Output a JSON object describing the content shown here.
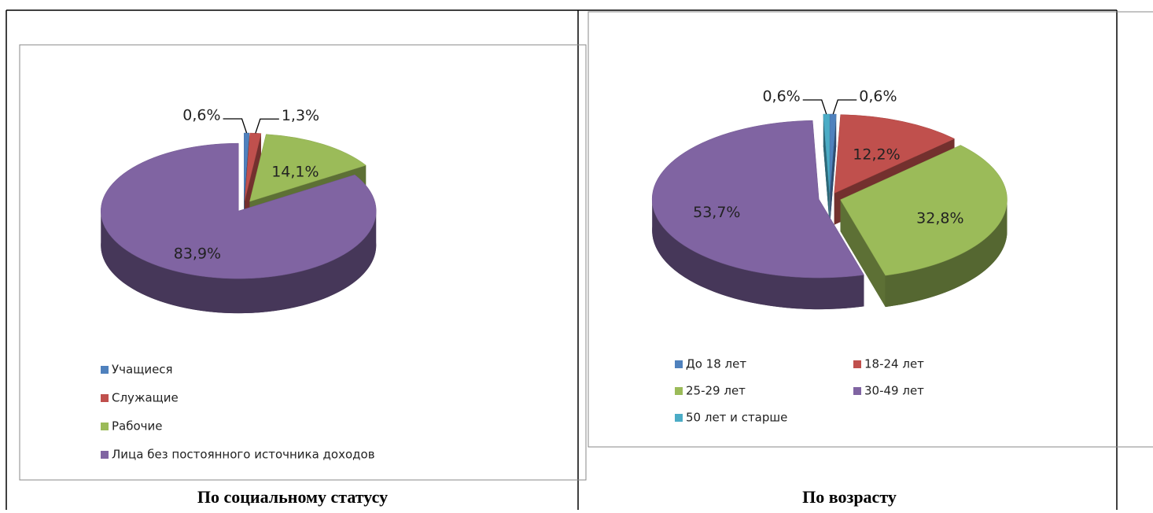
{
  "chart_data": [
    {
      "type": "pie",
      "title": "По социальному статусу",
      "categories": [
        "Учащиеся",
        "Служащие",
        "Рабочие",
        "Лица без постоянного источника доходов"
      ],
      "values": [
        0.6,
        1.3,
        14.1,
        83.9
      ],
      "value_labels": [
        "0,6%",
        "1,3%",
        "14,1%",
        "83,9%"
      ],
      "colors": [
        "#4f81bd",
        "#c0504d",
        "#9bbb59",
        "#8064a2"
      ],
      "legend": "bottom"
    },
    {
      "type": "pie",
      "title": "По возрасту",
      "categories": [
        "До 18 лет",
        "18-24 лет",
        "25-29 лет",
        "30-49 лет",
        "50 лет и старше"
      ],
      "values": [
        0.6,
        12.2,
        32.8,
        53.7,
        0.6
      ],
      "value_labels": [
        "0,6%",
        "12,2%",
        "32,8%",
        "53,7%",
        "0,6%"
      ],
      "colors": [
        "#4f81bd",
        "#c0504d",
        "#9bbb59",
        "#8064a2",
        "#4bacc6"
      ],
      "legend": "bottom"
    }
  ]
}
